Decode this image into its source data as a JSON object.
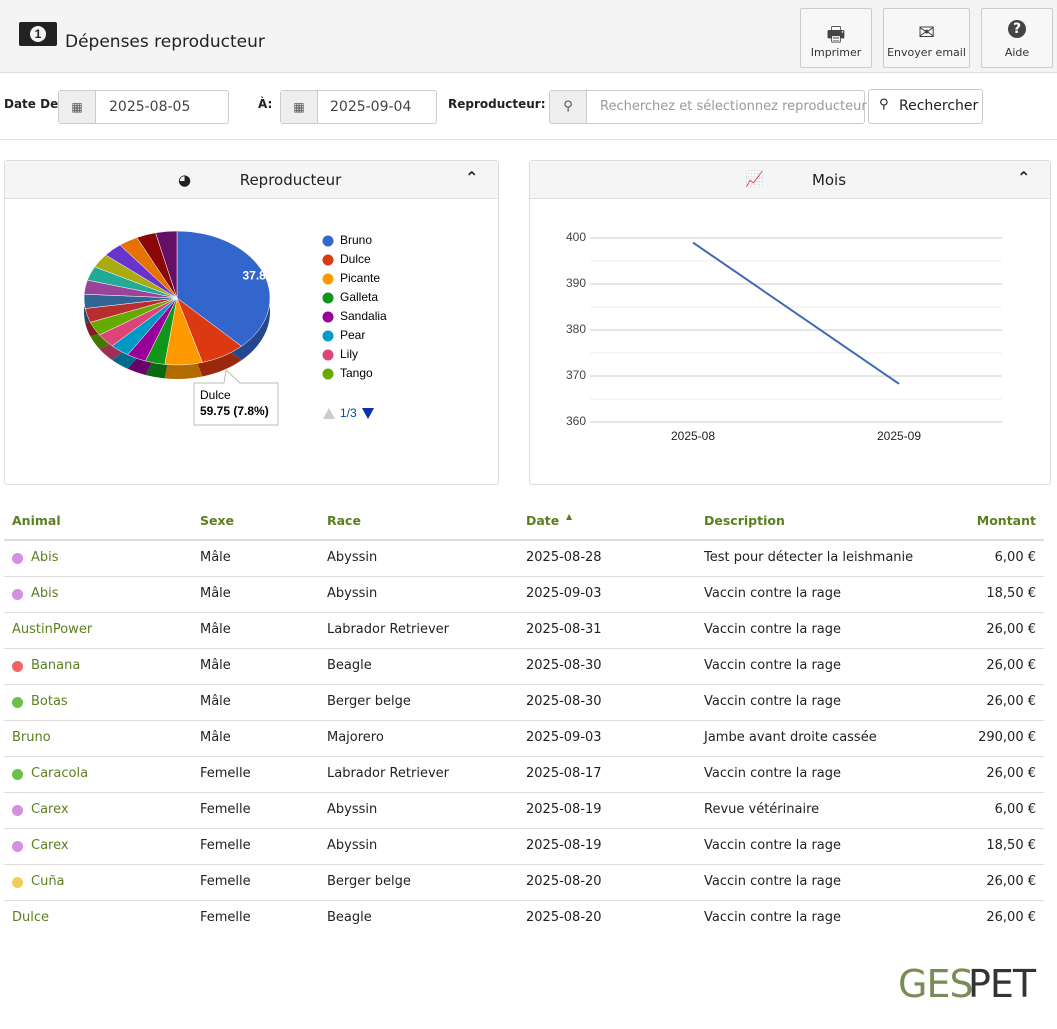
{
  "header": {
    "title": "Dépenses reproducteur",
    "buttons": [
      "Imprimer",
      "Envoyer email",
      "Aide"
    ]
  },
  "filters": {
    "date_from_label": "Date De:",
    "date_from": "2025-08-05",
    "date_to_label": "À:",
    "date_to": "2025-09-04",
    "breeder_label": "Reproducteur:",
    "breeder_placeholder": "Recherchez et sélectionnez reproducteur",
    "search_button": "Rechercher"
  },
  "chart_data": [
    {
      "type": "pie",
      "title": "Reproducteur",
      "categories": [
        "Bruno",
        "Dulce",
        "Picante",
        "Galleta",
        "Sandalia",
        "Pear",
        "Lily",
        "Tango",
        null,
        null,
        null,
        null,
        null,
        null,
        null,
        null,
        null
      ],
      "values": [
        37.8,
        7.8,
        6.5,
        3.4,
        3.4,
        3.4,
        3.4,
        3.4,
        3.4,
        3.4,
        3.4,
        3.4,
        3.4,
        3.4,
        3.4,
        3.4,
        3.7
      ],
      "value_labels": [
        "37.8%",
        null,
        null,
        null,
        null,
        null,
        null,
        null,
        null,
        null,
        null,
        null,
        null,
        null,
        null,
        null,
        null
      ],
      "colors": [
        "#3366cc",
        "#dc3912",
        "#ff9900",
        "#109618",
        "#990099",
        "#0099c6",
        "#dd4477",
        "#66aa00",
        "#b82e2e",
        "#316395",
        "#994499",
        "#22aa99",
        "#aaaa11",
        "#6633cc",
        "#e67300",
        "#8b0707",
        "#651067"
      ],
      "legend_page": "1/3",
      "tooltip": {
        "name": "Dulce",
        "text": "59.75 (7.8%)"
      }
    },
    {
      "type": "line",
      "title": "Mois",
      "x": [
        "2025-08",
        "2025-09"
      ],
      "values": [
        399,
        368.3
      ],
      "color": "#3d6ab5",
      "ylim": [
        360,
        400
      ],
      "yticks": [
        360,
        370,
        380,
        390,
        400
      ],
      "minor_grid": [
        365,
        375,
        385,
        395
      ],
      "grid": true
    }
  ],
  "table": {
    "columns": [
      "Animal",
      "Sexe",
      "Race",
      "Date",
      "Description",
      "Montant"
    ],
    "rows": [
      [
        "Abis",
        "Mâle",
        "Abyssin",
        "2025-08-28",
        "Test pour détecter la leishmanie",
        "6,00 €"
      ],
      [
        "Abis",
        "Mâle",
        "Abyssin",
        "2025-09-03",
        "Vaccin contre la rage",
        "18,50 €"
      ],
      [
        "AustinPower",
        "Mâle",
        "Labrador Retriever",
        "2025-08-31",
        "Vaccin contre la rage",
        "26,00 €"
      ],
      [
        "Banana",
        "Mâle",
        "Beagle",
        "2025-08-30",
        "Vaccin contre la rage",
        "26,00 €"
      ],
      [
        "Botas",
        "Mâle",
        "Berger belge",
        "2025-08-30",
        "Vaccin contre la rage",
        "26,00 €"
      ],
      [
        "Bruno",
        "Mâle",
        "Majorero",
        "2025-09-03",
        "Jambe avant droite cassée",
        "290,00 €"
      ],
      [
        "Caracola",
        "Femelle",
        "Labrador Retriever",
        "2025-08-17",
        "Vaccin contre la rage",
        "26,00 €"
      ],
      [
        "Carex",
        "Femelle",
        "Abyssin",
        "2025-08-19",
        "Revue vétérinaire",
        "6,00 €"
      ],
      [
        "Carex",
        "Femelle",
        "Abyssin",
        "2025-08-19",
        "Vaccin contre la rage",
        "18,50 €"
      ],
      [
        "Cuña",
        "Femelle",
        "Berger belge",
        "2025-08-20",
        "Vaccin contre la rage",
        "26,00 €"
      ],
      [
        "Dulce",
        "Femelle",
        "Beagle",
        "2025-08-20",
        "Vaccin contre la rage",
        "26,00 €"
      ]
    ],
    "dot_colors": [
      "#d38fe0",
      "#d38fe0",
      null,
      "#ee6363",
      "#6cc04a",
      null,
      "#6cc04a",
      "#d38fe0",
      "#d38fe0",
      "#f0cd5a",
      null
    ]
  },
  "footer": {
    "logo": [
      "GES",
      "PET"
    ]
  }
}
